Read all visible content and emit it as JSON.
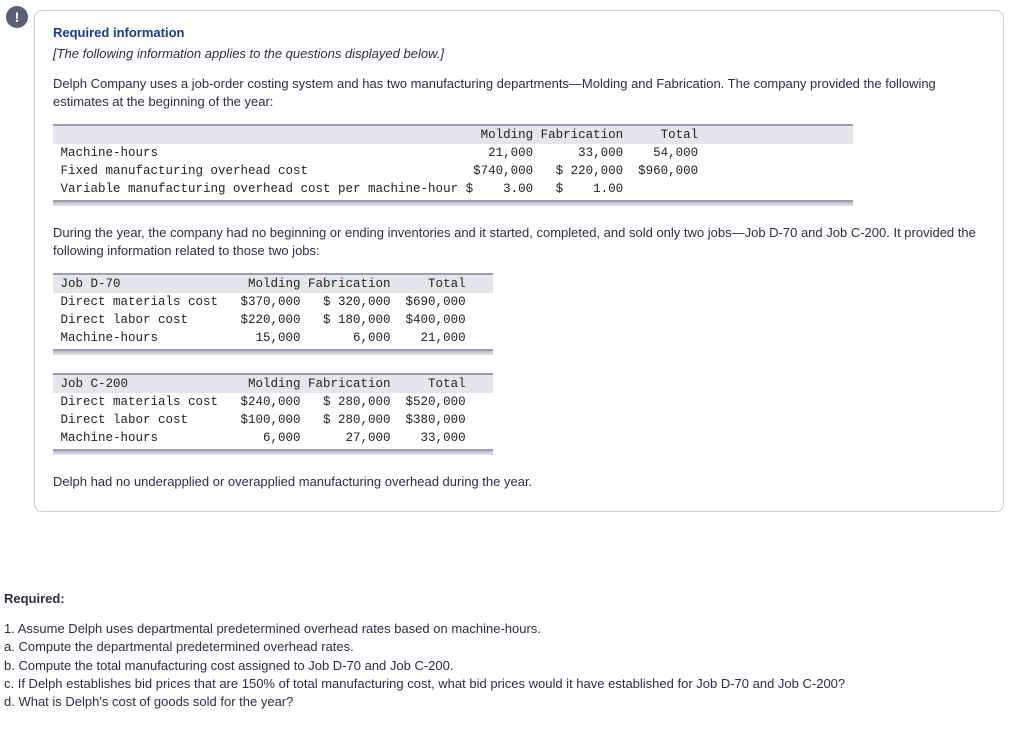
{
  "bang_symbol": "!",
  "panel": {
    "heading": "Required information",
    "italic_note": "[The following information applies to the questions displayed below.]",
    "intro": "Delph Company uses a job-order costing system and has two manufacturing departments—Molding and Fabrication. The company provided the following estimates at the beginning of the year:",
    "midpara": "During the year, the company had no beginning or ending inventories and it started, completed, and sold only two jobs—Job D-70 and Job C-200. It provided the following information related to those two jobs:",
    "closing": "Delph had no underapplied or overapplied manufacturing overhead during the year."
  },
  "estimates": {
    "columns": [
      "Molding",
      "Fabrication",
      "Total"
    ],
    "rows": [
      {
        "label": "Machine-hours",
        "molding": "21,000",
        "fabrication": "33,000",
        "total": "54,000"
      },
      {
        "label": "Fixed manufacturing overhead cost",
        "molding": "$740,000",
        "fabrication": "$ 220,000",
        "total": "$960,000"
      },
      {
        "label": "Variable manufacturing overhead cost per machine-hour",
        "molding": "$    3.00",
        "fabrication": "$    1.00",
        "total": ""
      }
    ]
  },
  "job_d70": {
    "title": "Job D-70",
    "columns": [
      "Molding",
      "Fabrication",
      "Total"
    ],
    "rows": [
      {
        "label": "Direct materials cost",
        "molding": "$370,000",
        "fabrication": "$ 320,000",
        "total": "$690,000"
      },
      {
        "label": "Direct labor cost",
        "molding": "$220,000",
        "fabrication": "$ 180,000",
        "total": "$400,000"
      },
      {
        "label": "Machine-hours",
        "molding": "15,000",
        "fabrication": "6,000",
        "total": "21,000"
      }
    ]
  },
  "job_c200": {
    "title": "Job C-200",
    "columns": [
      "Molding",
      "Fabrication",
      "Total"
    ],
    "rows": [
      {
        "label": "Direct materials cost",
        "molding": "$240,000",
        "fabrication": "$ 280,000",
        "total": "$520,000"
      },
      {
        "label": "Direct labor cost",
        "molding": "$100,000",
        "fabrication": "$ 280,000",
        "total": "$380,000"
      },
      {
        "label": "Machine-hours",
        "molding": "6,000",
        "fabrication": "27,000",
        "total": "33,000"
      }
    ]
  },
  "required": {
    "heading": "Required:",
    "lines": [
      "1. Assume Delph uses departmental predetermined overhead rates based on machine-hours.",
      "a. Compute the departmental predetermined overhead rates.",
      "b. Compute the total manufacturing cost assigned to Job D-70 and Job C-200.",
      "c. If Delph establishes bid prices that are 150% of total manufacturing cost, what bid prices would it have established for Job D-70 and Job C-200?",
      "d. What is Delph's cost of goods sold for the year?"
    ]
  },
  "style": {
    "heading_color": "#1b3a8a",
    "border_color": "#c7ccd8",
    "bang_bg": "#5a5f78",
    "mono_font": "Courier New",
    "table_header_bg": "#e4e6ec",
    "table_border": "#9aa0b4"
  }
}
